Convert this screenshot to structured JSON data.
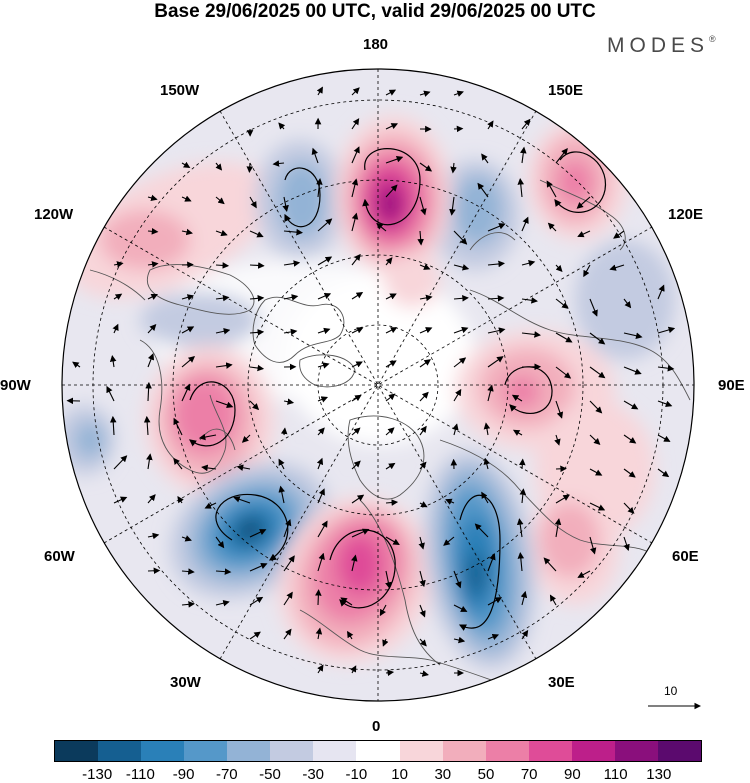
{
  "header": {
    "title": "Base 29/06/2025 00 UTC, valid 29/06/2025 00 UTC",
    "brand": "MODES",
    "brand_mark": "®"
  },
  "map": {
    "projection": "north-polar-stereographic",
    "longitude_labels": [
      "180",
      "150E",
      "120E",
      "90E",
      "60E",
      "30E",
      "0",
      "30W",
      "60W",
      "90W",
      "120W",
      "150W"
    ],
    "anomaly_centers": [
      {
        "name": "ne-pacific-positive",
        "sign": "positive",
        "level": 130
      },
      {
        "name": "gulf-of-alaska-negative",
        "sign": "negative",
        "level": -50
      },
      {
        "name": "bering-negative",
        "sign": "negative",
        "level": -50
      },
      {
        "name": "far-east-positive",
        "sign": "positive",
        "level": 70
      },
      {
        "name": "canada-positive",
        "sign": "positive",
        "level": 50
      },
      {
        "name": "north-atlantic-negative",
        "sign": "negative",
        "level": -130
      },
      {
        "name": "europe-positive",
        "sign": "positive",
        "level": 90
      },
      {
        "name": "russia-negative",
        "sign": "negative",
        "level": -110
      },
      {
        "name": "siberia-positive",
        "sign": "positive",
        "level": 50
      },
      {
        "name": "central-asia-positive",
        "sign": "positive",
        "level": 30
      }
    ],
    "vector_reference": {
      "label": "10"
    },
    "colors": {
      "coast": "#555555",
      "grid": "#000000",
      "vector": "#000000"
    }
  },
  "colorbar": {
    "levels": [
      "-130",
      "-110",
      "-90",
      "-70",
      "-50",
      "-30",
      "-10",
      "10",
      "30",
      "50",
      "70",
      "90",
      "110",
      "130"
    ],
    "colors": [
      "#0b3a5c",
      "#155f91",
      "#2a80b8",
      "#5598c9",
      "#93b3d6",
      "#c3cbe1",
      "#e6e5f1",
      "#ffffff",
      "#f8d6da",
      "#f2aebc",
      "#ec7fa7",
      "#df4c98",
      "#bd1f8a",
      "#8a0f7c",
      "#5b0a6e"
    ]
  }
}
